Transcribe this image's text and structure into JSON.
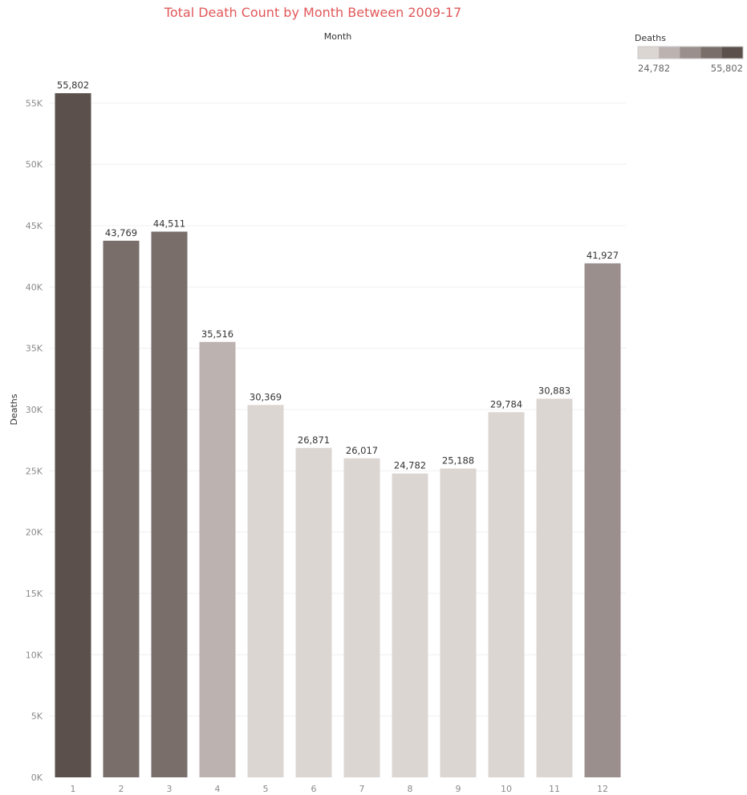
{
  "chart_data": {
    "type": "bar",
    "title": "Total Death Count by Month Between 2009-17",
    "column_header": "Month",
    "xlabel": "",
    "ylabel": "Deaths",
    "categories": [
      "1",
      "2",
      "3",
      "4",
      "5",
      "6",
      "7",
      "8",
      "9",
      "10",
      "11",
      "12"
    ],
    "values": [
      55802,
      43769,
      44511,
      35516,
      30369,
      26871,
      26017,
      24782,
      25188,
      29784,
      30883,
      41927
    ],
    "data_labels": [
      "55,802",
      "43,769",
      "44,511",
      "35,516",
      "30,369",
      "26,871",
      "26,017",
      "24,782",
      "25,188",
      "29,784",
      "30,883",
      "41,927"
    ],
    "ylim": [
      0,
      60000
    ],
    "yticks": [
      0,
      5000,
      10000,
      15000,
      20000,
      25000,
      30000,
      35000,
      40000,
      45000,
      50000,
      55000
    ],
    "ytick_labels": [
      "0K",
      "5K",
      "10K",
      "15K",
      "20K",
      "25K",
      "30K",
      "35K",
      "40K",
      "45K",
      "50K",
      "55K"
    ],
    "grid": "horizontal",
    "legend": {
      "title": "Deaths",
      "placement": "top-right",
      "type": "stepped color",
      "min_label": "24,782",
      "max_label": "55,802",
      "steps": [
        "#dcd6d3",
        "#bcb3b0",
        "#9a8f8c",
        "#7a6e6b",
        "#5b504c"
      ]
    },
    "colors": {
      "bar_fill_ramp": [
        "#dcd6d3",
        "#bcb3b0",
        "#9a8f8c",
        "#7a6e6b",
        "#5b504c"
      ],
      "title": "#e15759"
    }
  }
}
